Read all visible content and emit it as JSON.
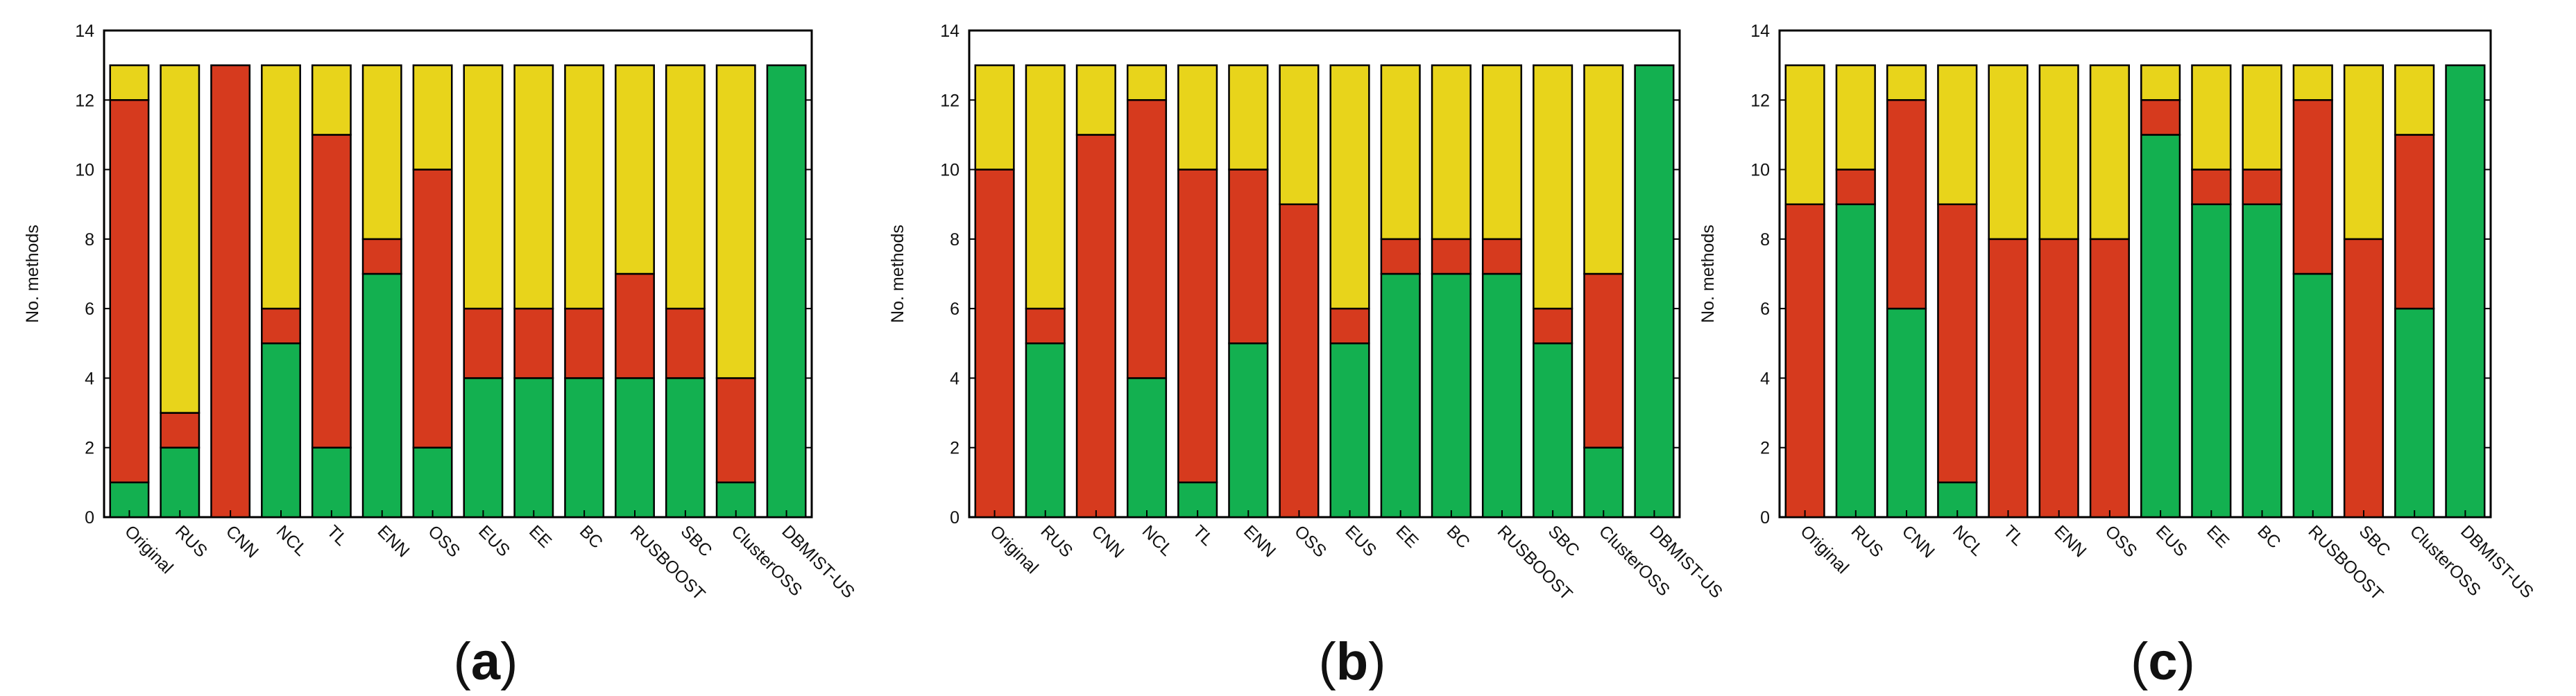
{
  "chart_data": [
    {
      "type": "bar",
      "stacked": true,
      "panel_label": "(a)",
      "panel_open": "(",
      "panel_letter": "a",
      "panel_close": ")",
      "title": "",
      "xlabel": "",
      "ylabel": "No. methods",
      "ylim": [
        0,
        14
      ],
      "yticks": [
        0,
        2,
        4,
        6,
        8,
        10,
        12,
        14
      ],
      "grid": false,
      "categories": [
        "Original",
        "RUS",
        "CNN",
        "NCL",
        "TL",
        "ENN",
        "OSS",
        "EUS",
        "EE",
        "BC",
        "RUSBOOST",
        "SBC",
        "ClusterOSS",
        "DBMIST-US"
      ],
      "series": [
        {
          "name": "green",
          "color": "#13b050",
          "values": [
            1,
            2,
            0,
            5,
            2,
            7,
            2,
            4,
            4,
            4,
            4,
            4,
            1,
            13
          ]
        },
        {
          "name": "red",
          "color": "#d63a1e",
          "values": [
            11,
            1,
            13,
            1,
            9,
            1,
            8,
            2,
            2,
            2,
            3,
            2,
            3,
            0
          ]
        },
        {
          "name": "yellow",
          "color": "#e8d41b",
          "values": [
            1,
            10,
            0,
            7,
            2,
            5,
            3,
            7,
            7,
            7,
            6,
            7,
            9,
            0
          ]
        }
      ]
    },
    {
      "type": "bar",
      "stacked": true,
      "panel_label": "(b)",
      "panel_open": "(",
      "panel_letter": "b",
      "panel_close": ")",
      "title": "",
      "xlabel": "",
      "ylabel": "No. methods",
      "ylim": [
        0,
        14
      ],
      "yticks": [
        0,
        2,
        4,
        6,
        8,
        10,
        12,
        14
      ],
      "grid": false,
      "categories": [
        "Original",
        "RUS",
        "CNN",
        "NCL",
        "TL",
        "ENN",
        "OSS",
        "EUS",
        "EE",
        "BC",
        "RUSBOOST",
        "SBC",
        "ClusterOSS",
        "DBMIST-US"
      ],
      "series": [
        {
          "name": "green",
          "color": "#13b050",
          "values": [
            0,
            5,
            0,
            4,
            1,
            5,
            0,
            5,
            7,
            7,
            7,
            5,
            2,
            13
          ]
        },
        {
          "name": "red",
          "color": "#d63a1e",
          "values": [
            10,
            1,
            11,
            8,
            9,
            5,
            9,
            1,
            1,
            1,
            1,
            1,
            5,
            0
          ]
        },
        {
          "name": "yellow",
          "color": "#e8d41b",
          "values": [
            3,
            7,
            2,
            1,
            3,
            3,
            4,
            7,
            5,
            5,
            5,
            7,
            6,
            0
          ]
        }
      ]
    },
    {
      "type": "bar",
      "stacked": true,
      "panel_label": "(c)",
      "panel_open": "(",
      "panel_letter": "c",
      "panel_close": ")",
      "title": "",
      "xlabel": "",
      "ylabel": "No. methods",
      "ylim": [
        0,
        14
      ],
      "yticks": [
        0,
        2,
        4,
        6,
        8,
        10,
        12,
        14
      ],
      "grid": false,
      "categories": [
        "Original",
        "RUS",
        "CNN",
        "NCL",
        "TL",
        "ENN",
        "OSS",
        "EUS",
        "EE",
        "BC",
        "RUSBOOST",
        "SBC",
        "ClusterOSS",
        "DBMIST-US"
      ],
      "series": [
        {
          "name": "green",
          "color": "#13b050",
          "values": [
            0,
            9,
            6,
            1,
            0,
            0,
            0,
            11,
            9,
            9,
            7,
            0,
            6,
            13
          ]
        },
        {
          "name": "red",
          "color": "#d63a1e",
          "values": [
            9,
            1,
            6,
            8,
            8,
            8,
            8,
            1,
            1,
            1,
            5,
            8,
            5,
            0
          ]
        },
        {
          "name": "yellow",
          "color": "#e8d41b",
          "values": [
            4,
            3,
            1,
            4,
            5,
            5,
            5,
            1,
            3,
            3,
            1,
            5,
            2,
            0
          ]
        }
      ]
    }
  ]
}
